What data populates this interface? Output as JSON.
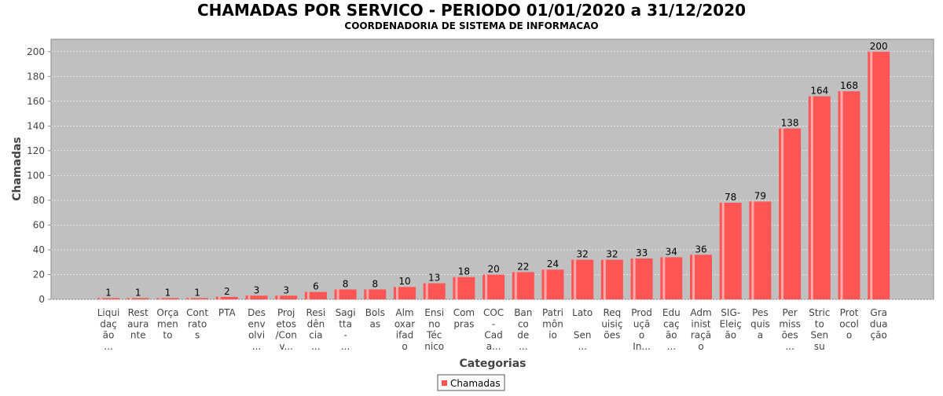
{
  "chart_data": {
    "type": "bar",
    "title": "CHAMADAS POR SERVICO - PERIODO 01/01/2020 a 31/12/2020",
    "subtitle": "COORDENADORIA DE SISTEMA DE INFORMACAO",
    "xlabel": "Categorias",
    "ylabel": "Chamadas",
    "ylim": [
      0,
      210
    ],
    "yticks": [
      0,
      20,
      40,
      60,
      80,
      100,
      120,
      140,
      160,
      180,
      200
    ],
    "grid": true,
    "legend": {
      "entries": [
        "Chamadas"
      ],
      "placement": "bottom-center"
    },
    "colors": {
      "bar": "#ff5555",
      "plot_bg": "#c0c0c0"
    },
    "categories": [
      [
        "Liqui",
        "daç",
        "ão",
        "..."
      ],
      [
        "Rest",
        "aura",
        "nte"
      ],
      [
        "Orça",
        "men",
        "to"
      ],
      [
        "Cont",
        "rato",
        "s"
      ],
      [
        "PTA"
      ],
      [
        "Des",
        "env",
        "olvi",
        "..."
      ],
      [
        "Proj",
        "etos",
        "/Con",
        "v..."
      ],
      [
        "Resi",
        "dên",
        "cia",
        "..."
      ],
      [
        "Sagi",
        "tta",
        "-",
        "..."
      ],
      [
        "Bols",
        "as"
      ],
      [
        "Alm",
        "oxar",
        "ifad",
        "o"
      ],
      [
        "Ensi",
        "no",
        "Téc",
        "nico"
      ],
      [
        "Com",
        "pras"
      ],
      [
        "COC",
        "-",
        "Cad",
        "a..."
      ],
      [
        "Ban",
        "co",
        "de",
        "..."
      ],
      [
        "Patri",
        "môn",
        "io"
      ],
      [
        "Lato",
        "",
        "Sen",
        "..."
      ],
      [
        "Req",
        "uisiç",
        "ões"
      ],
      [
        "Prod",
        "uçã",
        "o",
        "In..."
      ],
      [
        "Edu",
        "caç",
        "ão",
        "..."
      ],
      [
        "Adm",
        "inist",
        "raçã",
        "o"
      ],
      [
        "SIG-",
        "Eleiç",
        "ão"
      ],
      [
        "Pes",
        "quis",
        "a"
      ],
      [
        "Per",
        "miss",
        "ões",
        "..."
      ],
      [
        "Stric",
        "to",
        "Sen",
        "su"
      ],
      [
        "Prot",
        "ocol",
        "o"
      ],
      [
        "Gra",
        "dua",
        "ção"
      ]
    ],
    "series": [
      {
        "name": "Chamadas",
        "values": [
          1,
          1,
          1,
          1,
          2,
          3,
          3,
          6,
          8,
          8,
          10,
          13,
          18,
          20,
          22,
          24,
          32,
          32,
          33,
          34,
          36,
          78,
          79,
          138,
          164,
          168,
          200
        ]
      }
    ]
  }
}
